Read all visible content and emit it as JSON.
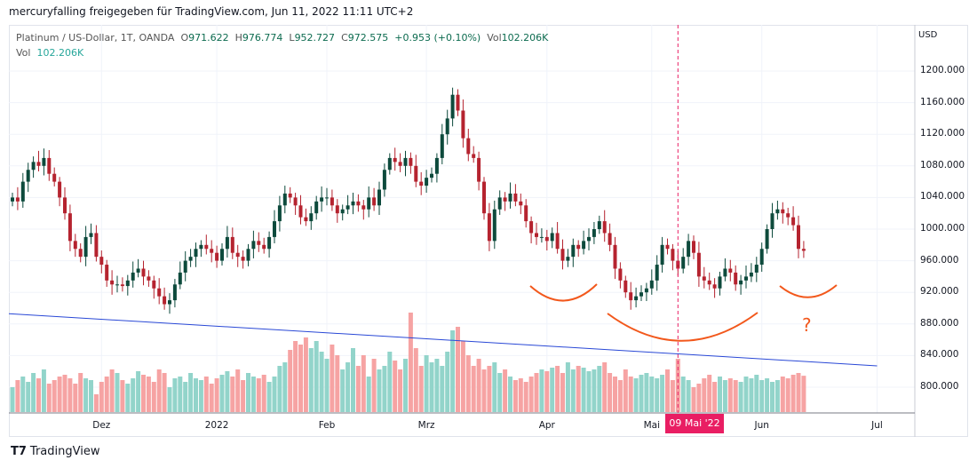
{
  "credit": "mercuryfalling freigegeben für TradingView.com, Jun 11, 2022 11:11 UTC+2",
  "legend": {
    "symbol": "Platinum / US-Dollar, 1T, OANDA",
    "o_label": "O",
    "o": "971.622",
    "h_label": "H",
    "h": "976.774",
    "l_label": "L",
    "l": "952.727",
    "c_label": "C",
    "c": "972.575",
    "change": "+0.953 (+0.10%)",
    "vol_label": "Vol",
    "vol": "102.206K"
  },
  "legend2": {
    "label": "Vol",
    "value": "102.206K"
  },
  "currency": "USD",
  "crosshair_date": "09 Mai '22",
  "annotation_text": "?",
  "brand": "TradingView",
  "colors": {
    "up": "#0d4a3c",
    "down": "#b5232f",
    "vol_up": "#92d4ca",
    "vol_down": "#f6a3a3",
    "trendline": "#2948d6",
    "arc": "#f2581c",
    "crosshair": "#e91e63"
  },
  "chart_data": {
    "type": "candlestick",
    "title": "Platinum / US-Dollar, 1T, OANDA",
    "ylim": [
      780,
      1220
    ],
    "y_ticks": [
      "1200.000",
      "1160.000",
      "1120.000",
      "1080.000",
      "1040.000",
      "1000.000",
      "960.000",
      "920.000",
      "880.000",
      "840.000",
      "800.000"
    ],
    "y_tick_values": [
      1200,
      1160,
      1120,
      1080,
      1040,
      1000,
      960,
      920,
      880,
      840,
      800
    ],
    "x_ticks": [
      {
        "label": "Dez",
        "bar": 17
      },
      {
        "label": "2022",
        "bar": 39
      },
      {
        "label": "Feb",
        "bar": 60
      },
      {
        "label": "Mrz",
        "bar": 79
      },
      {
        "label": "Apr",
        "bar": 102
      },
      {
        "label": "Mai",
        "bar": 122
      },
      {
        "label": "Jun",
        "bar": 143
      },
      {
        "label": "Jul",
        "bar": 165
      }
    ],
    "crosshair_bar": 127,
    "closes": [
      1040,
      1035,
      1060,
      1075,
      1085,
      1080,
      1090,
      1070,
      1060,
      1040,
      1020,
      985,
      975,
      965,
      990,
      995,
      965,
      955,
      935,
      930,
      930,
      928,
      935,
      945,
      950,
      940,
      935,
      925,
      915,
      905,
      910,
      930,
      945,
      960,
      965,
      975,
      980,
      975,
      970,
      960,
      975,
      990,
      970,
      965,
      960,
      975,
      985,
      980,
      975,
      990,
      1010,
      1030,
      1045,
      1040,
      1030,
      1015,
      1010,
      1020,
      1035,
      1040,
      1040,
      1030,
      1020,
      1025,
      1030,
      1035,
      1030,
      1025,
      1040,
      1030,
      1050,
      1075,
      1090,
      1085,
      1080,
      1090,
      1080,
      1060,
      1055,
      1065,
      1070,
      1090,
      1120,
      1140,
      1170,
      1150,
      1115,
      1095,
      1090,
      1060,
      1020,
      985,
      1025,
      1040,
      1035,
      1045,
      1035,
      1030,
      1010,
      995,
      990,
      990,
      985,
      995,
      975,
      960,
      965,
      980,
      975,
      985,
      990,
      1000,
      1010,
      995,
      980,
      950,
      935,
      920,
      910,
      915,
      920,
      925,
      935,
      955,
      980,
      975,
      960,
      950,
      965,
      985,
      970,
      940,
      935,
      930,
      925,
      940,
      950,
      945,
      930,
      935,
      940,
      945,
      955,
      975,
      1000,
      1020,
      1025,
      1020,
      1015,
      1005,
      975,
      972.575
    ],
    "volumes_k": [
      70,
      90,
      100,
      85,
      110,
      95,
      120,
      80,
      90,
      100,
      105,
      95,
      80,
      110,
      95,
      90,
      50,
      85,
      100,
      120,
      110,
      90,
      80,
      95,
      115,
      105,
      100,
      85,
      120,
      110,
      70,
      95,
      100,
      85,
      110,
      95,
      90,
      100,
      80,
      95,
      105,
      115,
      100,
      120,
      90,
      110,
      100,
      95,
      105,
      85,
      100,
      130,
      140,
      175,
      200,
      190,
      210,
      180,
      200,
      170,
      150,
      190,
      160,
      120,
      140,
      180,
      130,
      160,
      100,
      150,
      120,
      130,
      170,
      145,
      120,
      150,
      280,
      180,
      130,
      160,
      140,
      150,
      130,
      170,
      230,
      240,
      200,
      160,
      130,
      150,
      120,
      130,
      140,
      110,
      120,
      100,
      90,
      95,
      85,
      100,
      110,
      120,
      115,
      125,
      130,
      110,
      140,
      120,
      130,
      125,
      115,
      120,
      130,
      140,
      110,
      100,
      90,
      120,
      100,
      95,
      105,
      110,
      100,
      95,
      105,
      120,
      90,
      150,
      100,
      90,
      70,
      80,
      95,
      105,
      85,
      100,
      90,
      95,
      90,
      85,
      100,
      95,
      105,
      90,
      95,
      85,
      90,
      100,
      95,
      105,
      110,
      102.206
    ],
    "trendline": {
      "from_bar": 0,
      "from_price": 893,
      "to_bar": 165,
      "to_price": 827
    }
  }
}
